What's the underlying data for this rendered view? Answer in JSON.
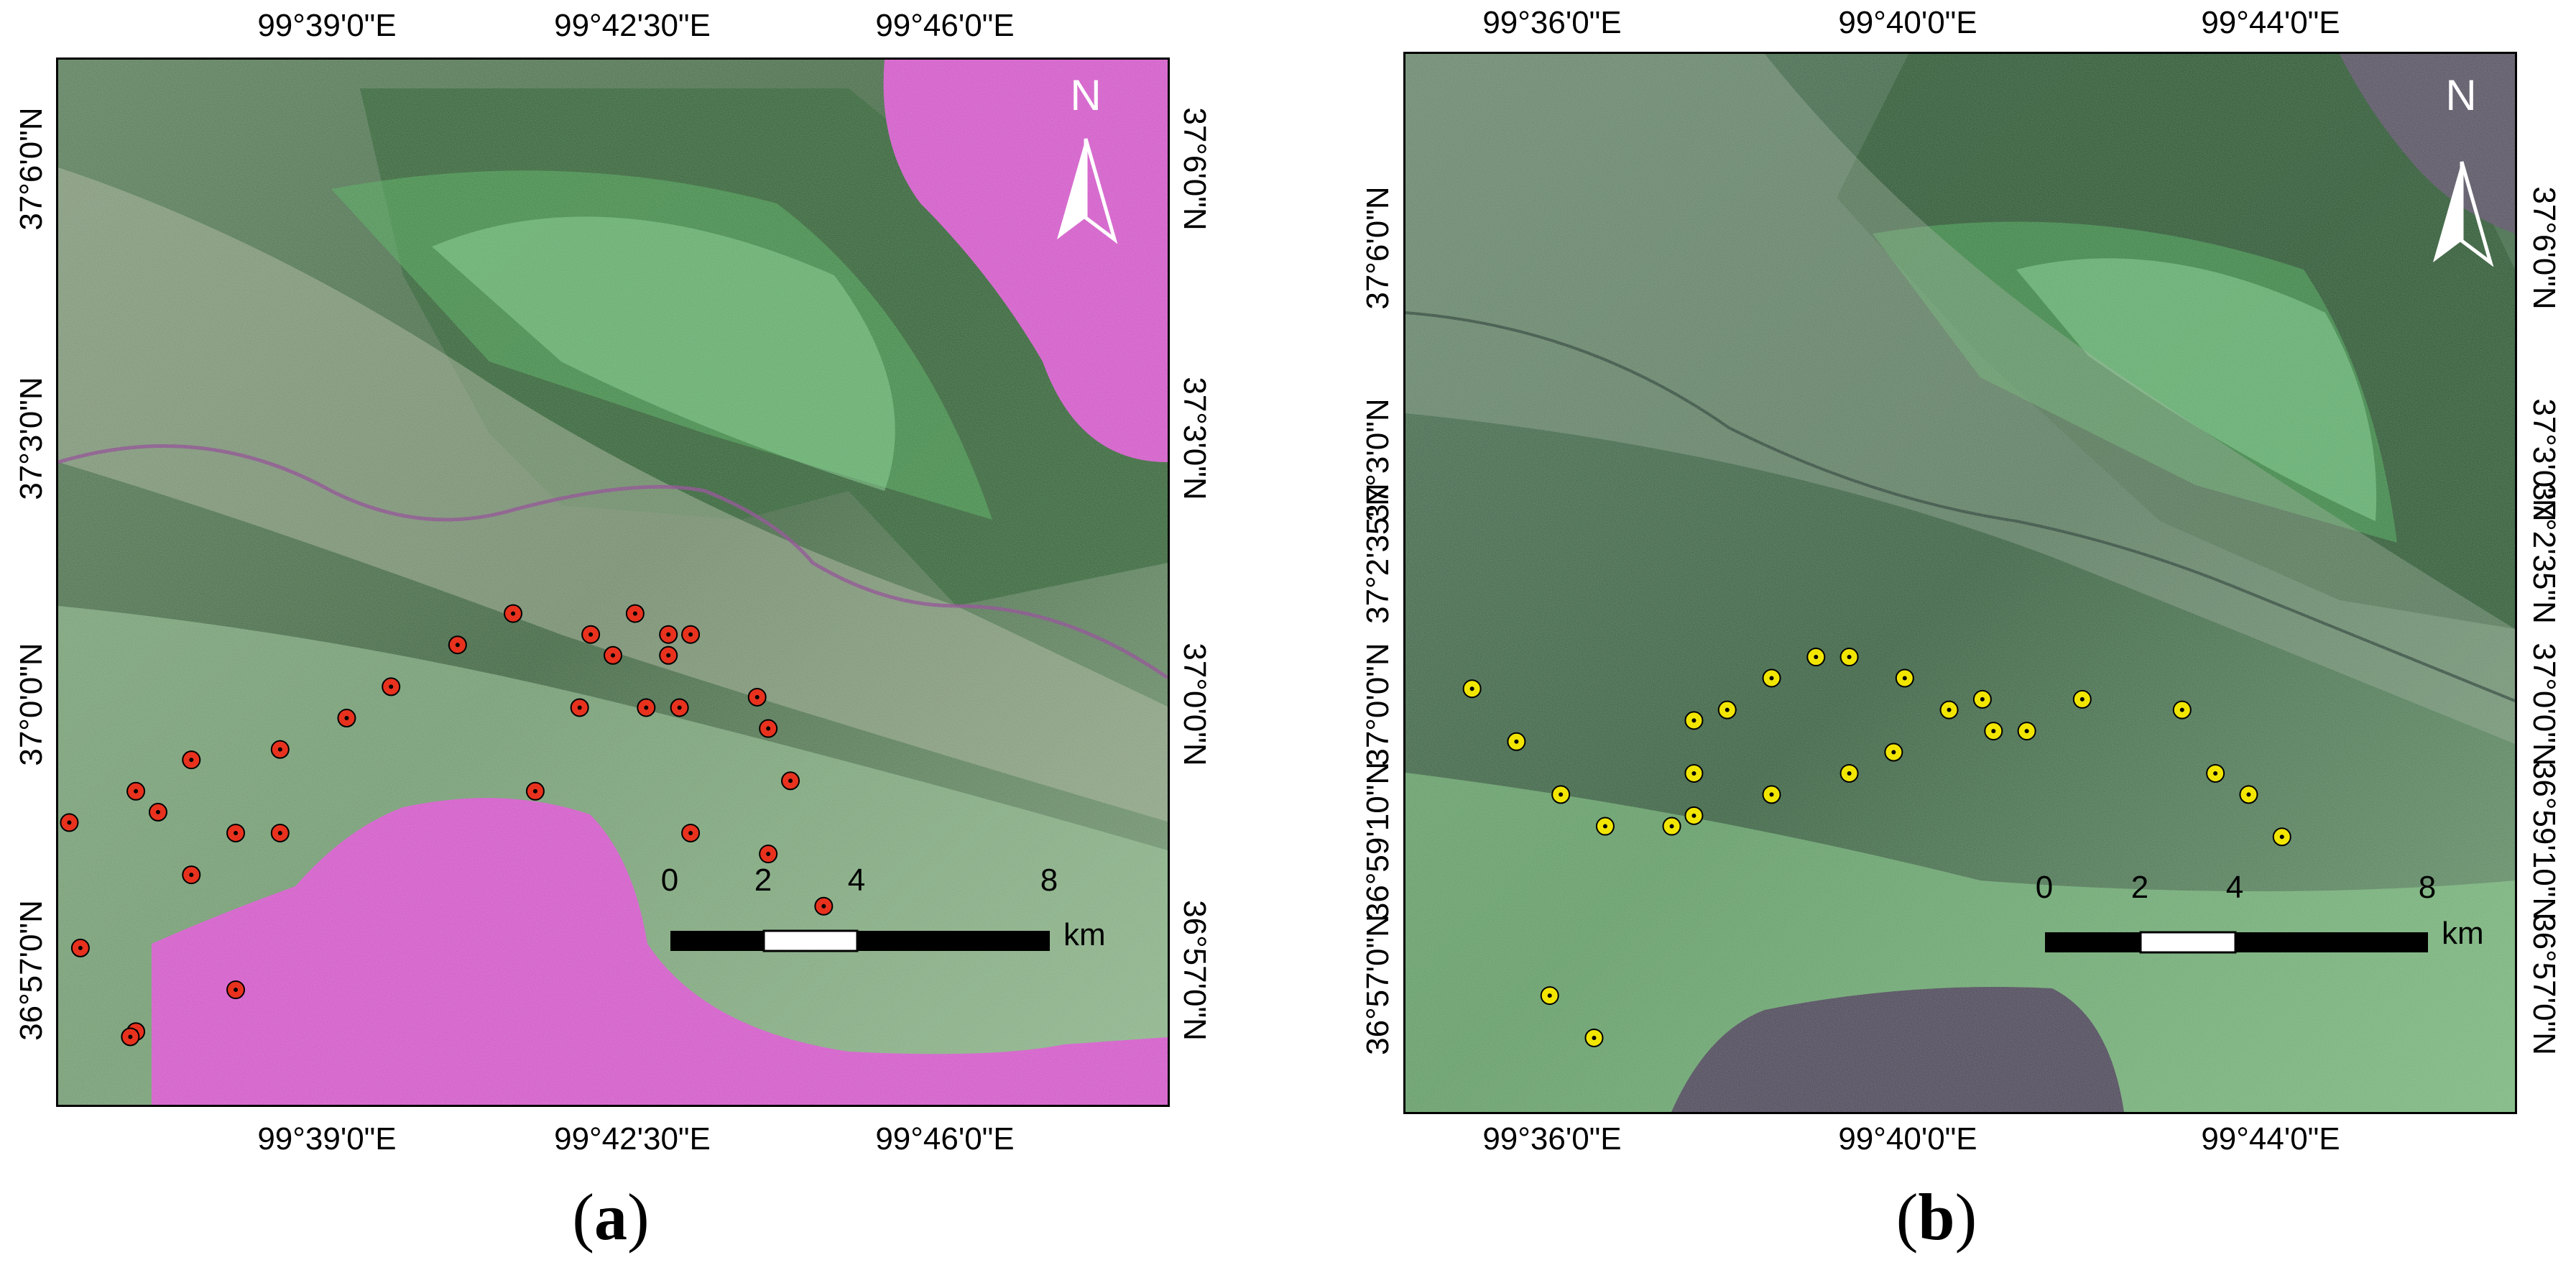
{
  "panel_a": {
    "caption_letter": "a",
    "top_labels": [
      "99°39'0\"E",
      "99°42'30\"E",
      "99°46'0\"E"
    ],
    "bottom_labels": [
      "99°39'0\"E",
      "99°42'30\"E",
      "99°46'0\"E"
    ],
    "left_labels": [
      "37°6'0\"N",
      "37°3'0\"N",
      "37°0'0\"N",
      "36°57'0\"N"
    ],
    "right_labels": [
      "37°6'0\"N",
      "37°3'0\"N",
      "37°0'0\"N",
      "36°57'0\"N"
    ],
    "north_label": "N",
    "scale_ticks": [
      "0",
      "2",
      "4",
      "8"
    ],
    "scale_unit": "km",
    "sample_point_color": "#e8321e",
    "sample_points": [
      [
        0.01,
        0.73
      ],
      [
        0.07,
        0.7
      ],
      [
        0.09,
        0.72
      ],
      [
        0.12,
        0.67
      ],
      [
        0.16,
        0.74
      ],
      [
        0.2,
        0.74
      ],
      [
        0.2,
        0.66
      ],
      [
        0.26,
        0.63
      ],
      [
        0.3,
        0.6
      ],
      [
        0.36,
        0.56
      ],
      [
        0.41,
        0.53
      ],
      [
        0.47,
        0.62
      ],
      [
        0.43,
        0.7
      ],
      [
        0.5,
        0.57
      ],
      [
        0.48,
        0.55
      ],
      [
        0.55,
        0.57
      ],
      [
        0.55,
        0.55
      ],
      [
        0.57,
        0.55
      ],
      [
        0.52,
        0.53
      ],
      [
        0.56,
        0.62
      ],
      [
        0.53,
        0.62
      ],
      [
        0.63,
        0.61
      ],
      [
        0.64,
        0.64
      ],
      [
        0.66,
        0.69
      ],
      [
        0.57,
        0.74
      ],
      [
        0.64,
        0.76
      ],
      [
        0.69,
        0.81
      ],
      [
        0.12,
        0.78
      ],
      [
        0.02,
        0.85
      ],
      [
        0.16,
        0.89
      ],
      [
        0.07,
        0.93
      ],
      [
        0.065,
        0.935
      ]
    ]
  },
  "panel_b": {
    "caption_letter": "b",
    "top_labels": [
      "99°36'0\"E",
      "99°40'0\"E",
      "99°44'0\"E"
    ],
    "bottom_labels": [
      "99°36'0\"E",
      "99°40'0\"E",
      "99°44'0\"E"
    ],
    "left_labels": [
      "37°6'0\"N",
      "37°3'0\"N",
      "37°2'35\"N",
      "37°0'0\"N",
      "36°59'10\"N",
      "36°57'0\"N"
    ],
    "right_labels": [
      "37°6'0\"N",
      "37°3'0\"N",
      "37°2'35\"N",
      "37°0'0\"N",
      "36°59'10\"N",
      "36°57'0\"N"
    ],
    "north_label": "N",
    "scale_ticks": [
      "0",
      "2",
      "4",
      "8"
    ],
    "scale_unit": "km",
    "sample_point_color": "#f2e600",
    "sample_points": [
      [
        0.06,
        0.6
      ],
      [
        0.1,
        0.65
      ],
      [
        0.14,
        0.7
      ],
      [
        0.18,
        0.73
      ],
      [
        0.24,
        0.73
      ],
      [
        0.26,
        0.72
      ],
      [
        0.26,
        0.68
      ],
      [
        0.26,
        0.63
      ],
      [
        0.29,
        0.62
      ],
      [
        0.33,
        0.59
      ],
      [
        0.37,
        0.57
      ],
      [
        0.4,
        0.57
      ],
      [
        0.33,
        0.7
      ],
      [
        0.4,
        0.68
      ],
      [
        0.44,
        0.66
      ],
      [
        0.45,
        0.59
      ],
      [
        0.49,
        0.62
      ],
      [
        0.52,
        0.61
      ],
      [
        0.53,
        0.64
      ],
      [
        0.56,
        0.64
      ],
      [
        0.61,
        0.61
      ],
      [
        0.7,
        0.62
      ],
      [
        0.73,
        0.68
      ],
      [
        0.76,
        0.7
      ],
      [
        0.79,
        0.74
      ],
      [
        0.13,
        0.89
      ],
      [
        0.17,
        0.93
      ]
    ]
  }
}
